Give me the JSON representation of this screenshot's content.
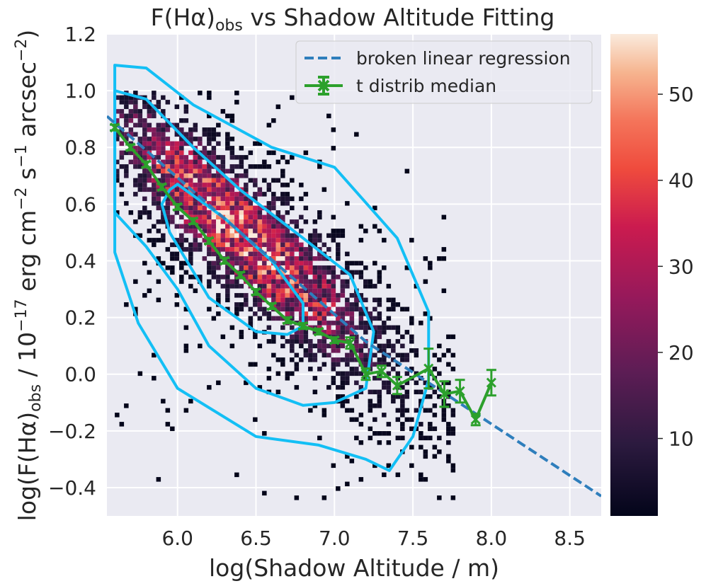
{
  "chart_data": {
    "type": "scatter",
    "title": "F(Hα)_obs vs Shadow Altitude Fitting",
    "title_parts": [
      "F(Hα)",
      "obs",
      " vs Shadow Altitude Fitting"
    ],
    "xlabel": "log(Shadow Altitude / m)",
    "ylabel": "log(F(Hα)_obs / 10^-17 erg cm^-2 s^-1 arcsec^-2)",
    "ylabel_parts": [
      "log(F(Hα)",
      "obs",
      " / 10",
      "−17",
      " erg cm",
      "−2",
      " s",
      "−1",
      " arcsec",
      "−2",
      ")"
    ],
    "xlim": [
      5.55,
      8.7
    ],
    "ylim": [
      -0.5,
      1.2
    ],
    "x_ticks": [
      6.0,
      6.5,
      7.0,
      7.5,
      8.0,
      8.5
    ],
    "x_tick_labels": [
      "6.0",
      "6.5",
      "7.0",
      "7.5",
      "8.0",
      "8.5"
    ],
    "y_ticks": [
      1.2,
      1.0,
      0.8,
      0.6,
      0.4,
      0.2,
      0.0,
      -0.2,
      -0.4
    ],
    "y_tick_labels": [
      "1.2",
      "1.0",
      "0.8",
      "0.6",
      "0.4",
      "0.2",
      "0.0",
      "−0.2",
      "−0.4"
    ],
    "grid": true,
    "legend_position": "top-right",
    "legend": [
      {
        "label": "broken linear regression",
        "color": "#2e7ebc",
        "style": "dashed"
      },
      {
        "label": "t distrib median",
        "color": "#2ca02c",
        "style": "line-errorbar-x"
      }
    ],
    "colorbar": {
      "range": [
        1,
        57
      ],
      "ticks": [
        10,
        20,
        30,
        40,
        50
      ],
      "tick_labels": [
        "10",
        "20",
        "30",
        "40",
        "50"
      ]
    },
    "regression": {
      "x": [
        5.55,
        7.2,
        8.7
      ],
      "y": [
        0.91,
        0.115,
        -0.43
      ]
    },
    "median": {
      "x": [
        5.6,
        5.7,
        5.8,
        5.9,
        6.0,
        6.1,
        6.2,
        6.3,
        6.4,
        6.5,
        6.6,
        6.7,
        6.8,
        6.9,
        7.0,
        7.1,
        7.2,
        7.3,
        7.4,
        7.6,
        7.7,
        7.8,
        7.9,
        8.0
      ],
      "y": [
        0.87,
        0.8,
        0.74,
        0.66,
        0.59,
        0.54,
        0.47,
        0.4,
        0.35,
        0.29,
        0.24,
        0.19,
        0.17,
        0.15,
        0.12,
        0.11,
        0.0,
        0.01,
        -0.04,
        0.02,
        -0.07,
        -0.06,
        -0.16,
        -0.03
      ],
      "err": [
        0.01,
        0.01,
        0.01,
        0.01,
        0.01,
        0.01,
        0.01,
        0.01,
        0.01,
        0.01,
        0.01,
        0.01,
        0.01,
        0.01,
        0.01,
        0.02,
        0.02,
        0.02,
        0.03,
        0.07,
        0.045,
        0.04,
        0.02,
        0.045
      ]
    },
    "contours": [
      {
        "level": "inner",
        "x": [
          6.0,
          6.3,
          6.6,
          6.8,
          6.8,
          6.7,
          6.5,
          6.2,
          5.95,
          5.9,
          5.95,
          6.0
        ],
        "y": [
          0.67,
          0.55,
          0.4,
          0.25,
          0.17,
          0.14,
          0.15,
          0.27,
          0.5,
          0.6,
          0.65,
          0.67
        ]
      },
      {
        "level": "middle",
        "x": [
          5.6,
          5.8,
          6.1,
          6.4,
          6.8,
          7.1,
          7.25,
          7.2,
          7.0,
          6.8,
          6.5,
          6.2,
          6.0,
          5.8,
          5.6
        ],
        "y": [
          1.0,
          0.97,
          0.8,
          0.65,
          0.48,
          0.35,
          0.15,
          -0.05,
          -0.1,
          -0.11,
          -0.05,
          0.1,
          0.3,
          0.45,
          0.57
        ]
      },
      {
        "level": "outer",
        "x": [
          5.6,
          5.8,
          6.1,
          6.6,
          7.0,
          7.4,
          7.6,
          7.6,
          7.5,
          7.35,
          7.2,
          6.9,
          6.5,
          6.0,
          5.75,
          5.6
        ],
        "y": [
          1.09,
          1.08,
          0.95,
          0.8,
          0.73,
          0.48,
          0.22,
          -0.02,
          -0.22,
          -0.34,
          -0.3,
          -0.25,
          -0.22,
          -0.05,
          0.18,
          0.43
        ]
      }
    ]
  }
}
